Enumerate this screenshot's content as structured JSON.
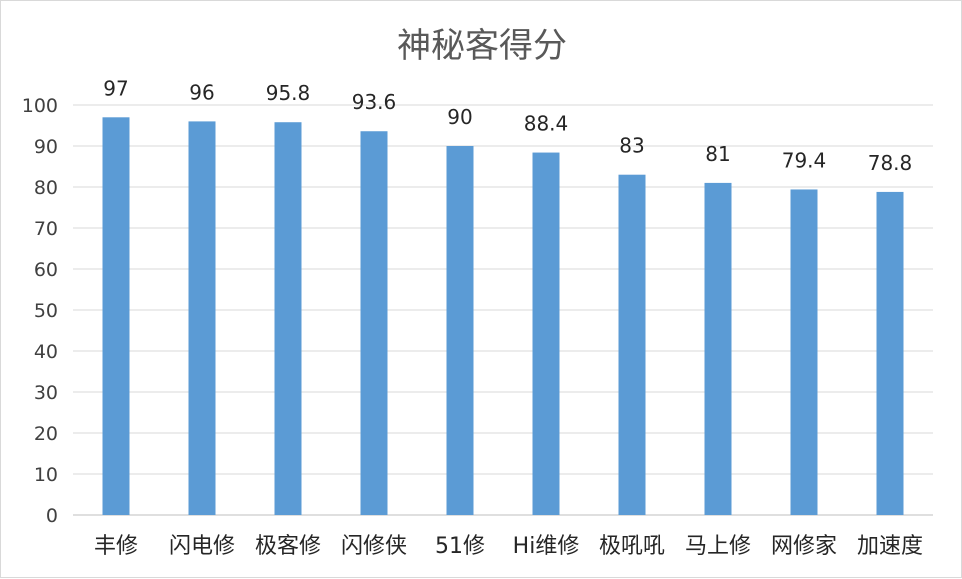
{
  "chart_data": {
    "type": "bar",
    "title": "神秘客得分",
    "categories": [
      "丰修",
      "闪电修",
      "极客修",
      "闪修侠",
      "51修",
      "Hi维修",
      "极吼吼",
      "马上修",
      "网修家",
      "加速度"
    ],
    "series": [
      {
        "values": [
          97,
          96,
          95.8,
          93.6,
          90,
          88.4,
          83,
          81,
          79.4,
          78.8
        ],
        "labels": [
          "97",
          "96",
          "95.8",
          "93.6",
          "90",
          "88.4",
          "83",
          "81",
          "79.4",
          "78.8"
        ]
      }
    ],
    "ylim": [
      0,
      100
    ],
    "yticks": [
      "0",
      "10",
      "20",
      "30",
      "40",
      "50",
      "60",
      "70",
      "80",
      "90",
      "100"
    ],
    "grid": true,
    "legend": "none",
    "colors": {
      "bar": "#5b9bd5",
      "grid": "#d9d9d9",
      "axis": "#bfbfbf"
    }
  }
}
